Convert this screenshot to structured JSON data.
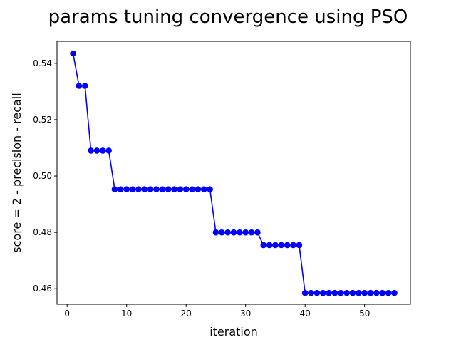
{
  "chart_data": {
    "type": "line",
    "title": "params tuning convergence using PSO",
    "xlabel": "iteration",
    "ylabel": "score = 2 - precision - recall",
    "xlim": [
      -1.7,
      57.7
    ],
    "ylim": [
      0.4545,
      0.5478
    ],
    "xticks": [
      0,
      10,
      20,
      30,
      40,
      50
    ],
    "yticks": [
      0.46,
      0.48,
      0.5,
      0.52,
      0.54
    ],
    "ytick_labels": [
      "0.46",
      "0.48",
      "0.50",
      "0.52",
      "0.54"
    ],
    "grid": false,
    "legend": false,
    "marker": "circle",
    "line_color": "#0000ff",
    "series": [
      {
        "x": [
          1,
          2,
          3,
          4,
          5,
          6,
          7,
          8,
          9,
          10,
          11,
          12,
          13,
          14,
          15,
          16,
          17,
          18,
          19,
          20,
          21,
          22,
          23,
          24,
          25,
          26,
          27,
          28,
          29,
          30,
          31,
          32,
          33,
          34,
          35,
          36,
          37,
          38,
          39,
          40,
          41,
          42,
          43,
          44,
          45,
          46,
          47,
          48,
          49,
          50,
          51,
          52,
          53,
          54,
          55
        ],
        "values": [
          0.5435,
          0.532,
          0.532,
          0.509,
          0.509,
          0.509,
          0.509,
          0.4953,
          0.4953,
          0.4953,
          0.4953,
          0.4953,
          0.4953,
          0.4953,
          0.4953,
          0.4953,
          0.4953,
          0.4953,
          0.4953,
          0.4953,
          0.4953,
          0.4953,
          0.4953,
          0.4953,
          0.48,
          0.48,
          0.48,
          0.48,
          0.48,
          0.48,
          0.48,
          0.48,
          0.4755,
          0.4755,
          0.4755,
          0.4755,
          0.4755,
          0.4755,
          0.4755,
          0.4585,
          0.4585,
          0.4585,
          0.4585,
          0.4585,
          0.4585,
          0.4585,
          0.4585,
          0.4585,
          0.4585,
          0.4585,
          0.4585,
          0.4585,
          0.4585,
          0.4585,
          0.4585
        ]
      }
    ]
  }
}
